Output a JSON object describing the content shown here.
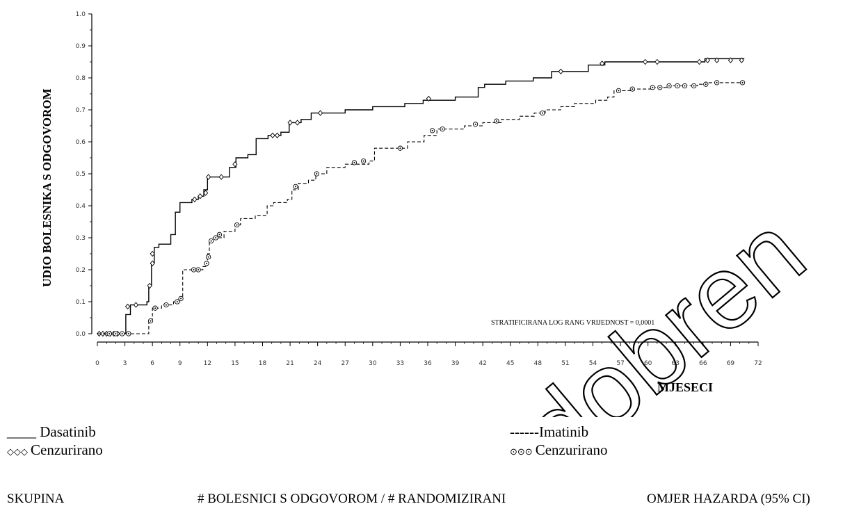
{
  "chart_data": {
    "type": "line",
    "ylabel": "UDIO BOLESNIKA S ODGOVOROM",
    "xlabel": "MJESECI",
    "xlim": [
      0,
      72
    ],
    "ylim": [
      0,
      1.0
    ],
    "xticks": [
      0,
      3,
      6,
      9,
      12,
      15,
      18,
      21,
      24,
      27,
      30,
      33,
      36,
      39,
      42,
      45,
      48,
      51,
      54,
      57,
      60,
      63,
      66,
      69,
      72
    ],
    "yticks": [
      "0.0",
      "0.1",
      "0.2",
      "0.3",
      "0.4",
      "0.5",
      "0.6",
      "0.7",
      "0.8",
      "0.9",
      "1.0"
    ],
    "annotation": "STRATIFICIRANA LOG RANG VRIJEDNOST = 0,0001",
    "series": [
      {
        "name": "Dasatinib",
        "style": "solid",
        "censor_marker": "diamond",
        "steps": [
          [
            0,
            0
          ],
          [
            2.9,
            0
          ],
          [
            3.1,
            0.06
          ],
          [
            3.6,
            0.09
          ],
          [
            5.4,
            0.1
          ],
          [
            5.6,
            0.15
          ],
          [
            5.9,
            0.22
          ],
          [
            6.2,
            0.27
          ],
          [
            6.7,
            0.28
          ],
          [
            8.0,
            0.31
          ],
          [
            8.5,
            0.38
          ],
          [
            9.0,
            0.41
          ],
          [
            10.3,
            0.42
          ],
          [
            11.0,
            0.43
          ],
          [
            11.6,
            0.45
          ],
          [
            12.0,
            0.49
          ],
          [
            14.4,
            0.52
          ],
          [
            15.1,
            0.55
          ],
          [
            16.4,
            0.56
          ],
          [
            17.3,
            0.61
          ],
          [
            18.6,
            0.62
          ],
          [
            20.0,
            0.63
          ],
          [
            20.9,
            0.66
          ],
          [
            22.2,
            0.67
          ],
          [
            23.3,
            0.69
          ],
          [
            27.0,
            0.7
          ],
          [
            30.0,
            0.71
          ],
          [
            33.5,
            0.72
          ],
          [
            35.5,
            0.73
          ],
          [
            39.0,
            0.74
          ],
          [
            41.5,
            0.77
          ],
          [
            42.2,
            0.78
          ],
          [
            44.5,
            0.79
          ],
          [
            47.5,
            0.8
          ],
          [
            49.5,
            0.82
          ],
          [
            53.5,
            0.84
          ],
          [
            55.3,
            0.85
          ],
          [
            65.2,
            0.85
          ],
          [
            66.2,
            0.86
          ],
          [
            70.5,
            0.86
          ]
        ],
        "censored": [
          [
            0.2,
            0
          ],
          [
            0.6,
            0
          ],
          [
            1.0,
            0
          ],
          [
            1.4,
            0
          ],
          [
            1.8,
            0
          ],
          [
            2.2,
            0
          ],
          [
            3.3,
            0.085
          ],
          [
            4.2,
            0.09
          ],
          [
            5.7,
            0.15
          ],
          [
            6.0,
            0.22
          ],
          [
            6.0,
            0.25
          ],
          [
            10.6,
            0.42
          ],
          [
            11.2,
            0.43
          ],
          [
            11.8,
            0.44
          ],
          [
            12.1,
            0.49
          ],
          [
            13.5,
            0.49
          ],
          [
            15.0,
            0.53
          ],
          [
            19.1,
            0.62
          ],
          [
            19.6,
            0.62
          ],
          [
            21.0,
            0.66
          ],
          [
            21.8,
            0.66
          ],
          [
            24.3,
            0.69
          ],
          [
            36.1,
            0.735
          ],
          [
            50.5,
            0.82
          ],
          [
            55.0,
            0.845
          ],
          [
            59.7,
            0.85
          ],
          [
            61.0,
            0.85
          ],
          [
            65.6,
            0.85
          ],
          [
            66.5,
            0.855
          ],
          [
            67.5,
            0.855
          ],
          [
            69.0,
            0.855
          ],
          [
            70.2,
            0.855
          ]
        ]
      },
      {
        "name": "Imatinib",
        "style": "dashed",
        "censor_marker": "circle",
        "steps": [
          [
            0,
            0
          ],
          [
            5.3,
            0
          ],
          [
            5.6,
            0.04
          ],
          [
            6.0,
            0.08
          ],
          [
            7.0,
            0.09
          ],
          [
            8.3,
            0.1
          ],
          [
            9.0,
            0.11
          ],
          [
            9.3,
            0.2
          ],
          [
            11.5,
            0.21
          ],
          [
            12.0,
            0.25
          ],
          [
            12.2,
            0.29
          ],
          [
            12.6,
            0.3
          ],
          [
            13.8,
            0.32
          ],
          [
            15.0,
            0.34
          ],
          [
            15.6,
            0.36
          ],
          [
            17.2,
            0.37
          ],
          [
            18.5,
            0.4
          ],
          [
            19.2,
            0.41
          ],
          [
            20.7,
            0.42
          ],
          [
            21.2,
            0.45
          ],
          [
            21.9,
            0.47
          ],
          [
            23.0,
            0.48
          ],
          [
            23.8,
            0.5
          ],
          [
            25.0,
            0.52
          ],
          [
            27.0,
            0.53
          ],
          [
            29.6,
            0.54
          ],
          [
            30.2,
            0.58
          ],
          [
            32.6,
            0.58
          ],
          [
            33.8,
            0.6
          ],
          [
            35.6,
            0.62
          ],
          [
            37.0,
            0.64
          ],
          [
            40.0,
            0.65
          ],
          [
            42.0,
            0.66
          ],
          [
            44.0,
            0.67
          ],
          [
            46.0,
            0.68
          ],
          [
            47.6,
            0.69
          ],
          [
            48.8,
            0.7
          ],
          [
            50.5,
            0.71
          ],
          [
            52.0,
            0.72
          ],
          [
            54.3,
            0.73
          ],
          [
            55.6,
            0.74
          ],
          [
            56.3,
            0.76
          ],
          [
            58.5,
            0.765
          ],
          [
            60.6,
            0.77
          ],
          [
            62.5,
            0.775
          ],
          [
            65.4,
            0.78
          ],
          [
            66.3,
            0.785
          ],
          [
            70.5,
            0.785
          ]
        ],
        "censored": [
          [
            1.3,
            0
          ],
          [
            2.0,
            0
          ],
          [
            2.7,
            0
          ],
          [
            3.4,
            0
          ],
          [
            5.8,
            0.04
          ],
          [
            6.3,
            0.08
          ],
          [
            7.5,
            0.09
          ],
          [
            8.7,
            0.1
          ],
          [
            9.1,
            0.11
          ],
          [
            10.5,
            0.2
          ],
          [
            11.0,
            0.2
          ],
          [
            11.9,
            0.22
          ],
          [
            12.1,
            0.24
          ],
          [
            12.4,
            0.29
          ],
          [
            12.9,
            0.3
          ],
          [
            13.3,
            0.31
          ],
          [
            15.2,
            0.34
          ],
          [
            21.6,
            0.46
          ],
          [
            23.9,
            0.5
          ],
          [
            28.0,
            0.535
          ],
          [
            29.0,
            0.54
          ],
          [
            33.0,
            0.58
          ],
          [
            36.5,
            0.635
          ],
          [
            37.6,
            0.64
          ],
          [
            41.2,
            0.655
          ],
          [
            43.5,
            0.665
          ],
          [
            48.5,
            0.69
          ],
          [
            56.8,
            0.76
          ],
          [
            58.3,
            0.765
          ],
          [
            60.5,
            0.77
          ],
          [
            61.3,
            0.77
          ],
          [
            62.3,
            0.775
          ],
          [
            63.2,
            0.775
          ],
          [
            64.0,
            0.775
          ],
          [
            65.0,
            0.775
          ],
          [
            66.3,
            0.78
          ],
          [
            67.5,
            0.785
          ],
          [
            70.3,
            0.785
          ]
        ]
      }
    ]
  },
  "watermark": "odobren",
  "legend": {
    "dasatinib_line": "____ Dasatinib",
    "dasatinib_censored_symbol": "◇◇◇",
    "dasatinib_censored_label": "Cenzurirano",
    "imatinib_line": "------Imatinib",
    "imatinib_censored_symbol": "⊙⊙⊙",
    "imatinib_censored_label": "Cenzurirano"
  },
  "table": {
    "col_group": "SKUPINA",
    "col_responders": "# BOLESNICI S ODGOVOROM / # RANDOMIZIRANI",
    "col_hazard": "OMJER HAZARDA (95% CI)"
  }
}
